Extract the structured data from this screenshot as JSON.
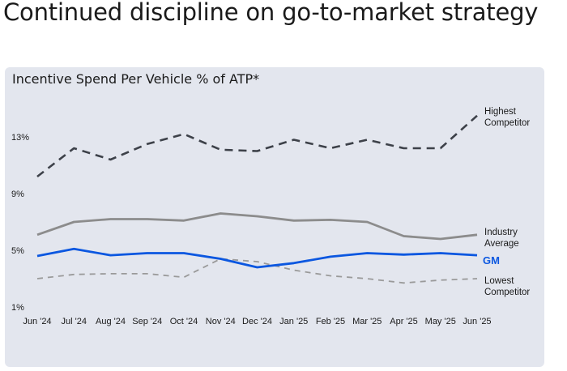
{
  "page": {
    "title": "Continued discipline on go-to-market strategy"
  },
  "chart_data": {
    "type": "line",
    "title": "Incentive Spend Per Vehicle % of ATP*",
    "xlabel": "",
    "ylabel": "",
    "ylim": [
      1,
      14.5
    ],
    "yticks": [
      1,
      5,
      9,
      13
    ],
    "ytick_labels": [
      "1%",
      "5%",
      "9%",
      "13%"
    ],
    "categories": [
      "Jun '24",
      "Jul '24",
      "Aug '24",
      "Sep '24",
      "Oct '24",
      "Nov '24",
      "Dec '24",
      "Jan '25",
      "Feb '25",
      "Mar '25",
      "Apr '25",
      "May '25",
      "Jun '25"
    ],
    "grid": false,
    "series": [
      {
        "name": "Highest Competitor",
        "label_lines": [
          "Highest",
          "Competitor"
        ],
        "color": "#3d4149",
        "style": "dashed",
        "values": [
          10.2,
          12.2,
          11.4,
          12.5,
          13.2,
          12.1,
          12.0,
          12.8,
          12.2,
          12.8,
          12.2,
          12.2,
          14.5
        ]
      },
      {
        "name": "Industry Average",
        "label_lines": [
          "Industry",
          "Average"
        ],
        "color": "#8c8c8c",
        "style": "solid",
        "values": [
          6.1,
          7.0,
          7.2,
          7.2,
          7.1,
          7.6,
          7.4,
          7.1,
          7.15,
          7.0,
          6.0,
          5.8,
          6.1
        ]
      },
      {
        "name": "GM",
        "label_lines": [
          "GM"
        ],
        "color": "#0b57e0",
        "style": "solid",
        "values": [
          4.6,
          5.1,
          4.65,
          4.8,
          4.8,
          4.4,
          3.8,
          4.1,
          4.55,
          4.8,
          4.7,
          4.8,
          4.65
        ]
      },
      {
        "name": "Lowest Competitor",
        "label_lines": [
          "Lowest",
          "Competitor"
        ],
        "color": "#9a9a9a",
        "style": "dashed",
        "values": [
          3.0,
          3.3,
          3.35,
          3.35,
          3.1,
          4.4,
          4.2,
          3.6,
          3.2,
          3.0,
          2.7,
          2.9,
          3.0
        ]
      }
    ]
  }
}
